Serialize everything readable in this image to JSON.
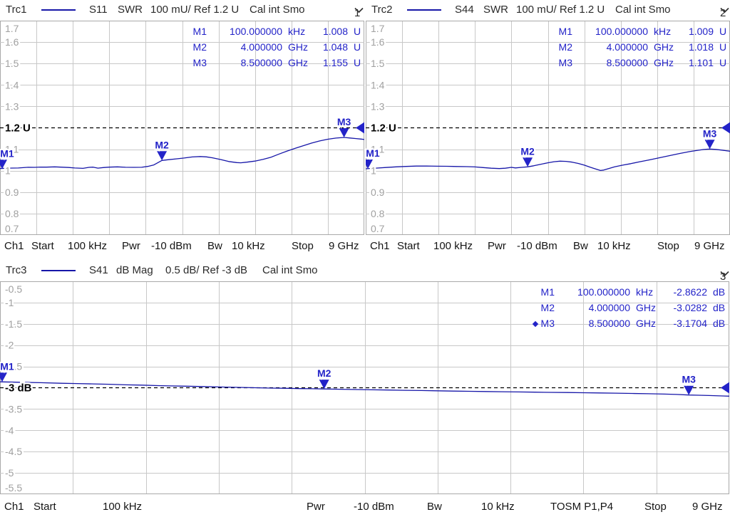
{
  "colors": {
    "trace": "#1616a8",
    "marker_blue": "#2323c8",
    "grid": "#c8c8c8",
    "frame": "#a9a9a9",
    "axis_label": "#a0a0a0",
    "ref_line": "#000000"
  },
  "panels": [
    {
      "key": "trc1",
      "header": {
        "trace": "Trc1",
        "meas": "S11",
        "format": "SWR",
        "scale": "100 mU/ Ref 1.2 U",
        "cal": "Cal int Smo",
        "channel": "1"
      },
      "axis": {
        "ref": 1.2,
        "ticks": [
          {
            "v": 1.7,
            "t": "1.7"
          },
          {
            "v": 1.6,
            "t": "1.6"
          },
          {
            "v": 1.5,
            "t": "1.5"
          },
          {
            "v": 1.4,
            "t": "1.4"
          },
          {
            "v": 1.3,
            "t": "1.3"
          },
          {
            "v": 1.2,
            "t": "1.2 U",
            "ref": true
          },
          {
            "v": 1.1,
            "t": "1.1"
          },
          {
            "v": 1.0,
            "t": "1"
          },
          {
            "v": 0.9,
            "t": "0.9"
          },
          {
            "v": 0.8,
            "t": "0.8"
          },
          {
            "v": 0.7,
            "t": "0.7"
          }
        ]
      },
      "readout": [
        {
          "name": "M1",
          "freq": "100.000000",
          "funit": "kHz",
          "val": "1.008",
          "vunit": "U"
        },
        {
          "name": "M2",
          "freq": "4.000000",
          "funit": "GHz",
          "val": "1.048",
          "vunit": "U"
        },
        {
          "name": "M3",
          "freq": "8.500000",
          "funit": "GHz",
          "val": "1.155",
          "vunit": "U"
        }
      ],
      "markers": [
        {
          "name": "M1",
          "ghz": 0.0001,
          "value": 1.008
        },
        {
          "name": "M2",
          "ghz": 4.0,
          "value": 1.048
        },
        {
          "name": "M3",
          "ghz": 8.5,
          "value": 1.155
        }
      ],
      "chart": {
        "type": "line",
        "x_unit": "GHz",
        "x_range": [
          0.0001,
          9
        ],
        "y_range": [
          0.7,
          1.7
        ],
        "points": [
          [
            0.0001,
            1.01
          ],
          [
            0.2,
            1.012
          ],
          [
            0.45,
            1.0125
          ],
          [
            0.7,
            1.016
          ],
          [
            0.85,
            1.0155
          ],
          [
            1.0,
            1.017
          ],
          [
            1.15,
            1.0165
          ],
          [
            1.35,
            1.018
          ],
          [
            1.5,
            1.0165
          ],
          [
            1.7,
            1.015
          ],
          [
            1.85,
            1.0125
          ],
          [
            2.05,
            1.011
          ],
          [
            2.2,
            1.0155
          ],
          [
            2.3,
            1.0165
          ],
          [
            2.42,
            1.012
          ],
          [
            2.55,
            1.0145
          ],
          [
            2.7,
            1.0165
          ],
          [
            2.9,
            1.018
          ],
          [
            3.1,
            1.016
          ],
          [
            3.3,
            1.0155
          ],
          [
            3.5,
            1.016
          ],
          [
            3.65,
            1.02
          ],
          [
            3.8,
            1.027
          ],
          [
            4.0,
            1.048
          ],
          [
            4.15,
            1.051
          ],
          [
            4.35,
            1.055
          ],
          [
            4.55,
            1.059
          ],
          [
            4.75,
            1.064
          ],
          [
            4.95,
            1.066
          ],
          [
            5.1,
            1.0645
          ],
          [
            5.25,
            1.06
          ],
          [
            5.45,
            1.052
          ],
          [
            5.65,
            1.043
          ],
          [
            5.85,
            1.038
          ],
          [
            5.95,
            1.037
          ],
          [
            6.1,
            1.04
          ],
          [
            6.3,
            1.045
          ],
          [
            6.5,
            1.053
          ],
          [
            6.7,
            1.063
          ],
          [
            6.9,
            1.078
          ],
          [
            7.1,
            1.092
          ],
          [
            7.3,
            1.105
          ],
          [
            7.5,
            1.117
          ],
          [
            7.7,
            1.129
          ],
          [
            7.9,
            1.139
          ],
          [
            8.1,
            1.147
          ],
          [
            8.3,
            1.152
          ],
          [
            8.5,
            1.155
          ],
          [
            8.65,
            1.1525
          ],
          [
            8.8,
            1.15
          ],
          [
            8.9,
            1.148
          ],
          [
            9.0,
            1.146
          ]
        ]
      },
      "status": [
        "Ch1",
        "Start",
        "100 kHz",
        "Pwr",
        "-10 dBm",
        "Bw",
        "10 kHz",
        "Stop",
        "9 GHz"
      ]
    },
    {
      "key": "trc2",
      "header": {
        "trace": "Trc2",
        "meas": "S44",
        "format": "SWR",
        "scale": "100 mU/ Ref 1.2 U",
        "cal": "Cal int Smo",
        "channel": "2"
      },
      "axis": {
        "ref": 1.2,
        "ticks": [
          {
            "v": 1.7,
            "t": "1.7"
          },
          {
            "v": 1.6,
            "t": "1.6"
          },
          {
            "v": 1.5,
            "t": "1.5"
          },
          {
            "v": 1.4,
            "t": "1.4"
          },
          {
            "v": 1.3,
            "t": "1.3"
          },
          {
            "v": 1.2,
            "t": "1.2 U",
            "ref": true
          },
          {
            "v": 1.1,
            "t": "1.1"
          },
          {
            "v": 1.0,
            "t": "1"
          },
          {
            "v": 0.9,
            "t": "0.9"
          },
          {
            "v": 0.8,
            "t": "0.8"
          },
          {
            "v": 0.7,
            "t": "0.7"
          }
        ]
      },
      "readout": [
        {
          "name": "M1",
          "freq": "100.000000",
          "funit": "kHz",
          "val": "1.009",
          "vunit": "U"
        },
        {
          "name": "M2",
          "freq": "4.000000",
          "funit": "GHz",
          "val": "1.018",
          "vunit": "U"
        },
        {
          "name": "M3",
          "freq": "8.500000",
          "funit": "GHz",
          "val": "1.101",
          "vunit": "U"
        }
      ],
      "markers": [
        {
          "name": "M1",
          "ghz": 0.0001,
          "value": 1.009
        },
        {
          "name": "M2",
          "ghz": 4.0,
          "value": 1.018
        },
        {
          "name": "M3",
          "ghz": 8.5,
          "value": 1.101
        }
      ],
      "chart": {
        "type": "line",
        "x_unit": "GHz",
        "x_range": [
          0.0001,
          9
        ],
        "y_range": [
          0.7,
          1.7
        ],
        "points": [
          [
            0.0001,
            1.009
          ],
          [
            0.25,
            1.012
          ],
          [
            0.5,
            1.015
          ],
          [
            0.75,
            1.018
          ],
          [
            1.0,
            1.02
          ],
          [
            1.25,
            1.0215
          ],
          [
            1.5,
            1.022
          ],
          [
            1.75,
            1.021
          ],
          [
            2.0,
            1.0205
          ],
          [
            2.25,
            1.0195
          ],
          [
            2.5,
            1.019
          ],
          [
            2.7,
            1.0175
          ],
          [
            2.9,
            1.0145
          ],
          [
            3.1,
            1.0115
          ],
          [
            3.3,
            1.01
          ],
          [
            3.45,
            1.0115
          ],
          [
            3.6,
            1.0155
          ],
          [
            3.7,
            1.013
          ],
          [
            3.85,
            1.0155
          ],
          [
            4.0,
            1.018
          ],
          [
            4.15,
            1.023
          ],
          [
            4.3,
            1.029
          ],
          [
            4.5,
            1.037
          ],
          [
            4.65,
            1.042
          ],
          [
            4.8,
            1.0445
          ],
          [
            4.95,
            1.0435
          ],
          [
            5.1,
            1.04
          ],
          [
            5.25,
            1.034
          ],
          [
            5.4,
            1.026
          ],
          [
            5.55,
            1.016
          ],
          [
            5.7,
            1.007
          ],
          [
            5.8,
            1.001
          ],
          [
            5.88,
            1.003
          ],
          [
            6.0,
            1.01
          ],
          [
            6.15,
            1.018
          ],
          [
            6.35,
            1.026
          ],
          [
            6.55,
            1.033
          ],
          [
            6.75,
            1.041
          ],
          [
            7.0,
            1.05
          ],
          [
            7.25,
            1.06
          ],
          [
            7.5,
            1.07
          ],
          [
            7.75,
            1.08
          ],
          [
            8.0,
            1.089
          ],
          [
            8.2,
            1.095
          ],
          [
            8.35,
            1.099
          ],
          [
            8.5,
            1.101
          ],
          [
            8.65,
            1.0995
          ],
          [
            8.8,
            1.096
          ],
          [
            8.9,
            1.0935
          ],
          [
            9.0,
            1.091
          ]
        ]
      },
      "status": [
        "Ch1",
        "Start",
        "100 kHz",
        "Pwr",
        "-10 dBm",
        "Bw",
        "10 kHz",
        "Stop",
        "9 GHz"
      ]
    },
    {
      "key": "trc3",
      "header": {
        "trace": "Trc3",
        "meas": "S41",
        "format": "dB Mag",
        "scale": "0.5 dB/ Ref -3 dB",
        "cal": "Cal int Smo",
        "channel": "3"
      },
      "axis": {
        "ref": -3,
        "ticks": [
          {
            "v": -0.5,
            "t": "-0.5"
          },
          {
            "v": -1,
            "t": "-1"
          },
          {
            "v": -1.5,
            "t": "-1.5"
          },
          {
            "v": -2,
            "t": "-2"
          },
          {
            "v": -2.5,
            "t": "-2.5"
          },
          {
            "v": -3,
            "t": "-3 dB",
            "ref": true
          },
          {
            "v": -3.5,
            "t": "-3.5"
          },
          {
            "v": -4,
            "t": "-4"
          },
          {
            "v": -4.5,
            "t": "-4.5"
          },
          {
            "v": -5,
            "t": "-5"
          },
          {
            "v": -5.5,
            "t": "-5.5"
          }
        ]
      },
      "readout": [
        {
          "name": "M1",
          "freq": "100.000000",
          "funit": "kHz",
          "val": "-2.8622",
          "vunit": "dB"
        },
        {
          "name": "M2",
          "freq": "4.000000",
          "funit": "GHz",
          "val": "-3.0282",
          "vunit": "dB"
        },
        {
          "name": "M3",
          "freq": "8.500000",
          "funit": "GHz",
          "val": "-3.1704",
          "vunit": "dB",
          "active": true
        }
      ],
      "markers": [
        {
          "name": "M1",
          "ghz": 0.0001,
          "value": -2.8622
        },
        {
          "name": "M2",
          "ghz": 4.0,
          "value": -3.0282
        },
        {
          "name": "M3",
          "ghz": 8.5,
          "value": -3.1704
        }
      ],
      "chart": {
        "type": "line",
        "x_unit": "GHz",
        "x_range": [
          0.0001,
          9
        ],
        "y_range": [
          -5.5,
          -0.5
        ],
        "points": [
          [
            0.0001,
            -2.862
          ],
          [
            0.25,
            -2.872
          ],
          [
            0.5,
            -2.882
          ],
          [
            0.75,
            -2.895
          ],
          [
            0.95,
            -2.902
          ],
          [
            1.15,
            -2.91
          ],
          [
            1.35,
            -2.918
          ],
          [
            1.55,
            -2.931
          ],
          [
            1.75,
            -2.938
          ],
          [
            1.95,
            -2.95
          ],
          [
            2.1,
            -2.957
          ],
          [
            2.3,
            -2.964
          ],
          [
            2.5,
            -2.972
          ],
          [
            2.7,
            -2.982
          ],
          [
            2.9,
            -2.99
          ],
          [
            3.1,
            -2.998
          ],
          [
            3.3,
            -3.006
          ],
          [
            3.5,
            -3.012
          ],
          [
            3.7,
            -3.02
          ],
          [
            3.85,
            -3.024
          ],
          [
            4.0,
            -3.028
          ],
          [
            4.2,
            -3.035
          ],
          [
            4.4,
            -3.042
          ],
          [
            4.6,
            -3.048
          ],
          [
            4.8,
            -3.054
          ],
          [
            5.0,
            -3.061
          ],
          [
            5.2,
            -3.066
          ],
          [
            5.4,
            -3.072
          ],
          [
            5.6,
            -3.078
          ],
          [
            5.8,
            -3.084
          ],
          [
            6.0,
            -3.089
          ],
          [
            6.2,
            -3.094
          ],
          [
            6.4,
            -3.098
          ],
          [
            6.6,
            -3.103
          ],
          [
            6.8,
            -3.108
          ],
          [
            7.0,
            -3.112
          ],
          [
            7.2,
            -3.117
          ],
          [
            7.4,
            -3.122
          ],
          [
            7.6,
            -3.127
          ],
          [
            7.8,
            -3.133
          ],
          [
            8.0,
            -3.14
          ],
          [
            8.2,
            -3.148
          ],
          [
            8.35,
            -3.157
          ],
          [
            8.5,
            -3.1704
          ],
          [
            8.62,
            -3.175
          ],
          [
            8.75,
            -3.182
          ],
          [
            8.88,
            -3.19
          ],
          [
            9.0,
            -3.197
          ]
        ]
      },
      "status": [
        "Ch1",
        "Start",
        "100 kHz",
        "Pwr",
        "-10 dBm",
        "Bw",
        "10 kHz",
        "TOSM P1,P4",
        "Stop",
        "9 GHz"
      ]
    }
  ]
}
